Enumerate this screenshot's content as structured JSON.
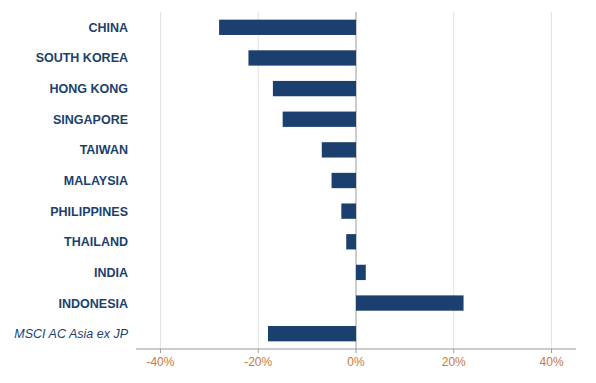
{
  "chart_data": {
    "type": "bar",
    "orientation": "horizontal",
    "categories": [
      "CHINA",
      "SOUTH KOREA",
      "HONG KONG",
      "SINGAPORE",
      "TAIWAN",
      "MALAYSIA",
      "PHILIPPINES",
      "THAILAND",
      "INDIA",
      "INDONESIA",
      "MSCI AC Asia ex JP"
    ],
    "values": [
      -28,
      -22,
      -17,
      -15,
      -7,
      -5,
      -3,
      -2,
      2,
      22,
      -18
    ],
    "color": "#1b3f6e",
    "xlim": [
      -45,
      45
    ],
    "xticks": [
      {
        "value": -40,
        "label": "-40%"
      },
      {
        "value": -20,
        "label": "-20%"
      },
      {
        "value": 0,
        "label": "0%"
      },
      {
        "value": 20,
        "label": "20%"
      },
      {
        "value": 40,
        "label": "40%"
      }
    ],
    "grid": true
  }
}
